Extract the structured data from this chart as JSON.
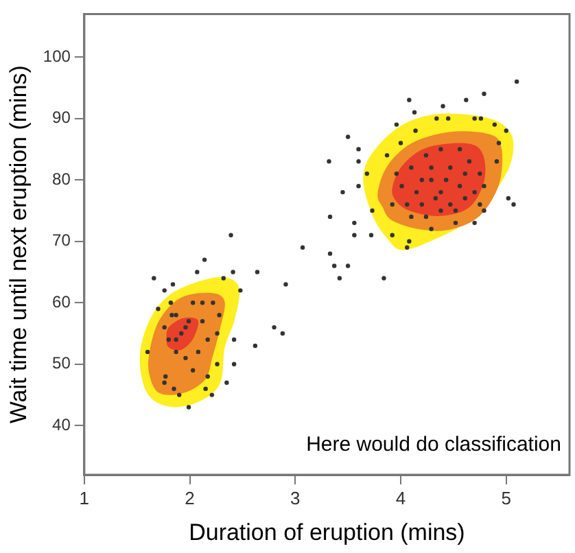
{
  "chart_data": {
    "type": "scatter",
    "xlabel": "Duration of eruption (mins)",
    "ylabel": "Wait time until next eruption (mins)",
    "annotations": [
      "Here would do classification"
    ],
    "xlim": [
      1,
      5.6
    ],
    "ylim": [
      32,
      107
    ],
    "xticks": [
      1,
      2,
      3,
      4,
      5
    ],
    "yticks": [
      40,
      50,
      60,
      70,
      80,
      90,
      100
    ],
    "grid": false,
    "legend": false,
    "marker": "circle",
    "series": [
      {
        "color": "#333333",
        "x": [
          1.66,
          1.76,
          1.84,
          2.14,
          2.07,
          2.39,
          2.32,
          2.41,
          2.64,
          2.48,
          2.91,
          2.8,
          2.88,
          2.62,
          2.42,
          2.42,
          2.35,
          2.21,
          2.15,
          1.99,
          1.6,
          1.7,
          1.82,
          1.76,
          1.87,
          1.92,
          1.99,
          2.03,
          2.12,
          2.22,
          2.28,
          1.8,
          1.87,
          1.96,
          2.08,
          2.17,
          2.26,
          1.77,
          1.85,
          1.9,
          2.03,
          2.17,
          2.26,
          1.76,
          1.96,
          1.87,
          2.12,
          1.83,
          3.07,
          3.32,
          3.45,
          3.33,
          3.33,
          3.37,
          3.42,
          3.5,
          3.84,
          3.56,
          3.56,
          3.72,
          3.5,
          3.6,
          3.6,
          3.6,
          4.08,
          4.13,
          4.4,
          4.62,
          4.79,
          5.1,
          3.96,
          5.02,
          5.07,
          5.0,
          4.89,
          4.34,
          4.45,
          4.7,
          4.76,
          4.14,
          4.0,
          3.87,
          3.68,
          3.73,
          3.92,
          4.08,
          4.06,
          4.29,
          4.52,
          4.7,
          4.79,
          4.93,
          4.91,
          4.1,
          4.24,
          4.38,
          4.56,
          4.65,
          4.75,
          4.01,
          4.15,
          4.29,
          4.43,
          4.56,
          4.7,
          4.79,
          3.92,
          4.06,
          4.2,
          4.33,
          4.47,
          4.61,
          4.75,
          4.1,
          4.24,
          4.38,
          4.52,
          4.29,
          4.47,
          4.61,
          3.96,
          4.2,
          4.38
        ],
        "values": [
          64,
          62,
          63,
          67,
          65,
          71,
          64,
          65,
          65,
          62,
          63,
          56,
          55,
          53,
          54,
          50,
          47,
          45,
          46,
          43,
          52,
          59,
          60,
          56,
          58,
          55,
          57,
          60,
          60,
          60,
          58,
          54,
          52,
          51,
          52,
          54,
          55,
          48,
          46,
          45,
          49,
          48,
          50,
          47,
          56,
          54,
          57,
          58,
          69,
          83,
          78,
          74,
          68,
          66,
          64,
          66,
          64,
          73,
          71,
          71,
          87,
          85,
          83,
          79,
          93,
          91,
          92,
          93,
          94,
          96,
          89,
          77,
          76,
          88,
          89,
          90,
          90,
          90,
          90,
          88,
          86,
          84,
          81,
          75,
          71,
          70,
          69,
          72,
          73,
          73,
          75,
          86,
          83,
          82,
          84,
          85,
          85,
          83,
          81,
          79,
          78,
          80,
          80,
          79,
          78,
          79,
          76,
          76,
          76,
          77,
          76,
          77,
          76,
          74,
          74,
          75,
          75,
          82,
          82,
          81,
          81,
          80,
          78
        ]
      }
    ]
  }
}
